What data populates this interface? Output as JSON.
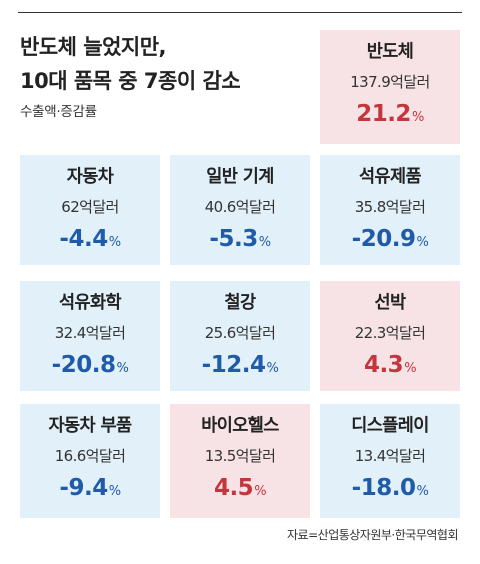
{
  "header": {
    "title_line1": "반도체 늘었지만,",
    "title_line2": "10대 품목 중 7종이 감소",
    "subtitle": "수출액·증감률"
  },
  "colors": {
    "increase_card": "#f7e3e6",
    "decrease_card": "#e2f0fa",
    "increase_text": "#c4363d",
    "decrease_text": "#1f5ba8"
  },
  "chart_data": {
    "type": "table",
    "title": "반도체 늘었지만, 10대 품목 중 7종이 감소",
    "subtitle": "수출액·증감률",
    "columns": [
      "품목",
      "수출액",
      "증감률"
    ],
    "items": [
      {
        "name": "반도체",
        "amount": "137.9억달러",
        "rate": "21.2",
        "direction": "up"
      },
      {
        "name": "자동차",
        "amount": "62억달러",
        "rate": "-4.4",
        "direction": "down"
      },
      {
        "name": "일반 기계",
        "amount": "40.6억달러",
        "rate": "-5.3",
        "direction": "down"
      },
      {
        "name": "석유제품",
        "amount": "35.8억달러",
        "rate": "-20.9",
        "direction": "down"
      },
      {
        "name": "석유화학",
        "amount": "32.4억달러",
        "rate": "-20.8",
        "direction": "down"
      },
      {
        "name": "철강",
        "amount": "25.6억달러",
        "rate": "-12.4",
        "direction": "down"
      },
      {
        "name": "선박",
        "amount": "22.3억달러",
        "rate": "4.3",
        "direction": "up"
      },
      {
        "name": "자동차 부품",
        "amount": "16.6억달러",
        "rate": "-9.4",
        "direction": "down"
      },
      {
        "name": "바이오헬스",
        "amount": "13.5억달러",
        "rate": "4.5",
        "direction": "up"
      },
      {
        "name": "디스플레이",
        "amount": "13.4억달러",
        "rate": "-18.0",
        "direction": "down"
      }
    ],
    "unit_symbol": "%"
  },
  "footer": {
    "source": "자료=산업통상자원부·한국무역협회"
  }
}
